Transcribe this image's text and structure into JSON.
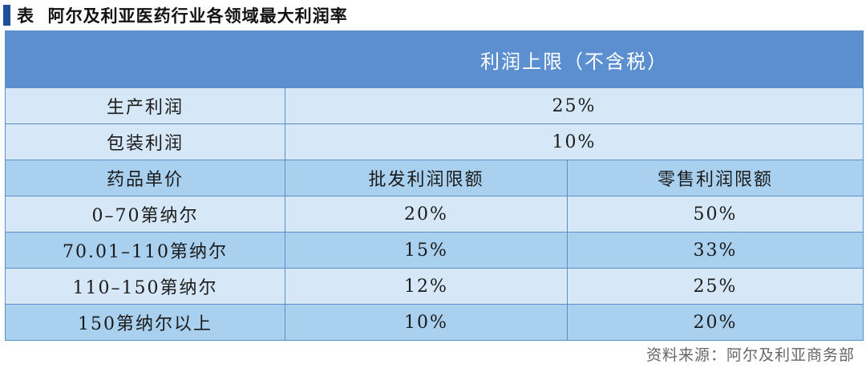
{
  "title": {
    "prefix": "表",
    "text": "阿尔及利亚医药行业各领域最大利润率"
  },
  "table": {
    "header": {
      "corner": "",
      "label": "利润上限（不含税）"
    },
    "simple_rows": [
      {
        "label": "生产利润",
        "value": "25%"
      },
      {
        "label": "包装利润",
        "value": "10%"
      }
    ],
    "sub_header": {
      "col1": "药品单价",
      "col2": "批发利润限额",
      "col3": "零售利润限额"
    },
    "price_rows": [
      {
        "range": "0–70第纳尔",
        "wholesale": "20%",
        "retail": "50%"
      },
      {
        "range": "70.01–110第纳尔",
        "wholesale": "15%",
        "retail": "33%"
      },
      {
        "range": "110–150第纳尔",
        "wholesale": "12%",
        "retail": "25%"
      },
      {
        "range": "150第纳尔以上",
        "wholesale": "10%",
        "retail": "20%"
      }
    ]
  },
  "source": "资料来源：阿尔及利亚商务部",
  "colors": {
    "header_bg": "#5b8fd0",
    "light_row_bg": "#d6e8f7",
    "mid_row_bg": "#a9d0ee",
    "border": "#5a8fc4",
    "title_marker": "#1f4e9b"
  }
}
